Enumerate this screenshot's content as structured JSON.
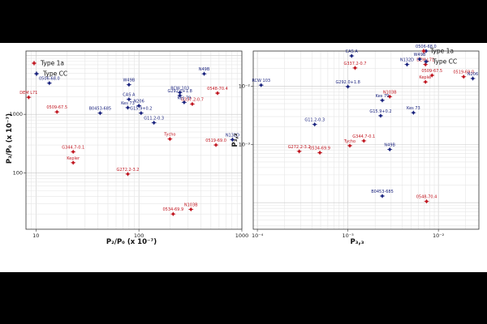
{
  "chart_data": [
    {
      "type": "scatter",
      "xlabel": "P₂/P₀  (x 10⁻⁷)",
      "ylabel": "P₃/P₀  (x 10⁻⁷)",
      "x_scale": "log",
      "y_scale": "log",
      "xlim": [
        8,
        1000
      ],
      "ylim": [
        11,
        12000
      ],
      "x_ticks": [
        "10",
        "100",
        "1000"
      ],
      "y_ticks": [
        "100",
        "1000"
      ],
      "grid": true,
      "legend": {
        "placement": "bottom-left",
        "entries": [
          "Type 1a",
          "Type CC"
        ]
      },
      "series": [
        {
          "name": "Type 1a",
          "color": "#c0151f",
          "points": [
            {
              "label": "DEM L71",
              "x": 8.5,
              "y": 1950
            },
            {
              "label": "0509-67.5",
              "x": 16,
              "y": 1100
            },
            {
              "label": "G344.7-0.1",
              "x": 23,
              "y": 230
            },
            {
              "label": "Kepler",
              "x": 23,
              "y": 150
            },
            {
              "label": "G272.2-3.2",
              "x": 78,
              "y": 96
            },
            {
              "label": "Tycho",
              "x": 200,
              "y": 380
            },
            {
              "label": "G337.2-0.7",
              "x": 330,
              "y": 1500
            },
            {
              "label": "0548-70.4",
              "x": 580,
              "y": 2300
            },
            {
              "label": "0519-69.0",
              "x": 560,
              "y": 300
            },
            {
              "label": "0534-69.9",
              "x": 215,
              "y": 20
            },
            {
              "label": "N103B",
              "x": 320,
              "y": 24
            }
          ]
        },
        {
          "name": "Type CC",
          "color": "#1a237e",
          "points": [
            {
              "label": "0506-68.0",
              "x": 13.5,
              "y": 3400
            },
            {
              "label": "W49B",
              "x": 80,
              "y": 3200
            },
            {
              "label": "N49B",
              "x": 430,
              "y": 4900
            },
            {
              "label": "RCW 103",
              "x": 250,
              "y": 2350
            },
            {
              "label": "G292.0+1.8",
              "x": 250,
              "y": 2100
            },
            {
              "label": "Kes 79",
              "x": 275,
              "y": 1600
            },
            {
              "label": "CAS A",
              "x": 80,
              "y": 1800
            },
            {
              "label": "Kes 73",
              "x": 78,
              "y": 1300
            },
            {
              "label": "N206",
              "x": 100,
              "y": 1400
            },
            {
              "label": "B0453-685",
              "x": 42,
              "y": 1050
            },
            {
              "label": "G15.9+0.2",
              "x": 105,
              "y": 1050
            },
            {
              "label": "G11.2-0.3",
              "x": 140,
              "y": 720
            },
            {
              "label": "N132D",
              "x": 810,
              "y": 370
            }
          ]
        }
      ]
    },
    {
      "type": "scatter",
      "xlabel": "P₃,₃",
      "ylabel": "P₃,₂",
      "x_scale": "log",
      "y_scale": "log",
      "xlim": [
        9e-05,
        0.028
      ],
      "ylim": [
        3.5e-05,
        0.04
      ],
      "x_ticks": [
        "10⁻⁴",
        "10⁻³",
        "10⁻²"
      ],
      "y_ticks": [
        "10⁻³",
        "10⁻²"
      ],
      "grid": true,
      "legend": {
        "placement": "top-right",
        "entries": [
          "Type 1a",
          "Type CC"
        ]
      },
      "series": [
        {
          "name": "Type 1a",
          "color": "#c0151f",
          "points": [
            {
              "label": "G337.2-0.7",
              "x": 0.0012,
              "y": 0.0205
            },
            {
              "label": "DEM L71",
              "x": 0.0072,
              "y": 0.0235
            },
            {
              "label": "0509-67.5",
              "x": 0.0085,
              "y": 0.0153
            },
            {
              "label": "Kepler",
              "x": 0.0072,
              "y": 0.0118
            },
            {
              "label": "0519-69.0",
              "x": 0.019,
              "y": 0.0145
            },
            {
              "label": "N103B",
              "x": 0.0029,
              "y": 0.0066
            },
            {
              "label": "G344.7-0.1",
              "x": 0.0015,
              "y": 0.00115
            },
            {
              "label": "Tycho",
              "x": 0.00105,
              "y": 0.00095
            },
            {
              "label": "G272.2-3.2",
              "x": 0.00029,
              "y": 0.00076
            },
            {
              "label": "0534-69.9",
              "x": 0.00049,
              "y": 0.00072
            },
            {
              "label": "0548-70.4",
              "x": 0.0074,
              "y": 0.000105
            }
          ]
        },
        {
          "name": "Type CC",
          "color": "#1a237e",
          "points": [
            {
              "label": "CAS A",
              "x": 0.0011,
              "y": 0.033
            },
            {
              "label": "0506-68.0",
              "x": 0.0073,
              "y": 0.04
            },
            {
              "label": "W49B",
              "x": 0.0062,
              "y": 0.029
            },
            {
              "label": "N132D",
              "x": 0.0045,
              "y": 0.0235
            },
            {
              "label": "N206",
              "x": 0.024,
              "y": 0.0135
            },
            {
              "label": "RCW 103",
              "x": 0.00011,
              "y": 0.0104
            },
            {
              "label": "G292.0+1.8",
              "x": 0.001,
              "y": 0.0098
            },
            {
              "label": "Kes 79",
              "x": 0.0024,
              "y": 0.0057
            },
            {
              "label": "G15.9+0.2",
              "x": 0.0023,
              "y": 0.0031
            },
            {
              "label": "Kes 73",
              "x": 0.0053,
              "y": 0.0035
            },
            {
              "label": "G11.2-0.3",
              "x": 0.00043,
              "y": 0.0022
            },
            {
              "label": "N49B",
              "x": 0.0029,
              "y": 0.00082
            },
            {
              "label": "B0453-685",
              "x": 0.0024,
              "y": 0.00013
            }
          ]
        }
      ]
    }
  ]
}
